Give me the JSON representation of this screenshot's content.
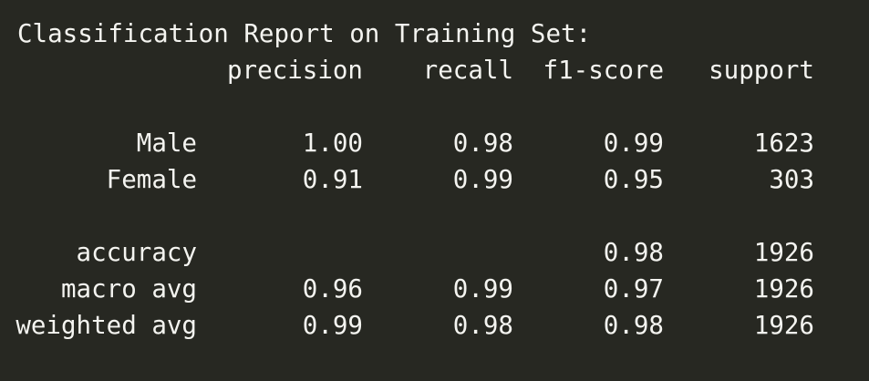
{
  "report": {
    "title": "Classification Report on Training Set:",
    "headers": [
      "precision",
      "recall",
      "f1-score",
      "support"
    ],
    "class_rows": [
      {
        "label": "Male",
        "precision": "1.00",
        "recall": "0.98",
        "f1": "0.99",
        "support": "1623"
      },
      {
        "label": "Female",
        "precision": "0.91",
        "recall": "0.99",
        "f1": "0.95",
        "support": "303"
      }
    ],
    "summary_rows": [
      {
        "label": "accuracy",
        "precision": "",
        "recall": "",
        "f1": "0.98",
        "support": "1926"
      },
      {
        "label": "macro avg",
        "precision": "0.96",
        "recall": "0.99",
        "f1": "0.97",
        "support": "1926"
      },
      {
        "label": "weighted avg",
        "precision": "0.99",
        "recall": "0.98",
        "f1": "0.98",
        "support": "1926"
      }
    ]
  },
  "colors": {
    "background": "#272822",
    "text": "#f4f4f0"
  }
}
